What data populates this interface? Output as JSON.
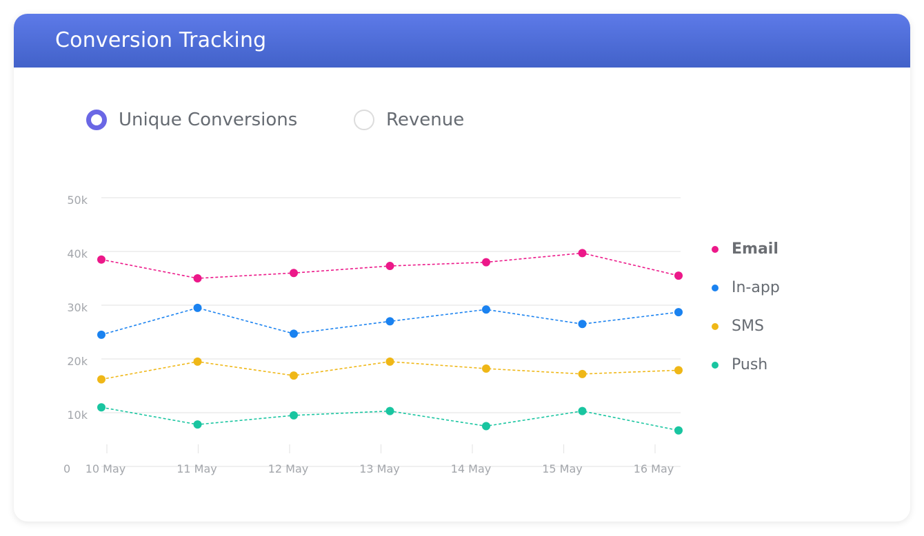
{
  "header": {
    "title": "Conversion Tracking"
  },
  "controls": {
    "options": [
      {
        "label": "Unique Conversions",
        "selected": true
      },
      {
        "label": "Revenue",
        "selected": false
      }
    ]
  },
  "colors": {
    "header_gradient": [
      "#5d7ae8",
      "#4262c9"
    ],
    "radio_selected": "#6a67e5",
    "grid": "#e6e6e6"
  },
  "chart_data": {
    "type": "line",
    "line_style": "dashed",
    "categories": [
      "10 May",
      "11 May",
      "12 May",
      "13 May",
      "14 May",
      "15 May",
      "16 May"
    ],
    "yticks": [
      "0",
      "10k",
      "20k",
      "30k",
      "40k",
      "50k"
    ],
    "ylim": [
      0,
      50000
    ],
    "grid": true,
    "legend_position": "right",
    "series": [
      {
        "name": "Email",
        "color": "#ec1889",
        "bold": true,
        "values": [
          38500,
          35000,
          36000,
          37300,
          38000,
          39700,
          35500
        ]
      },
      {
        "name": "In-app",
        "color": "#1a82f0",
        "bold": false,
        "values": [
          24500,
          29500,
          24700,
          27000,
          29200,
          26500,
          28700
        ]
      },
      {
        "name": "SMS",
        "color": "#efb717",
        "bold": false,
        "values": [
          16200,
          19500,
          16900,
          19500,
          18200,
          17200,
          17900
        ]
      },
      {
        "name": "Push",
        "color": "#19c5a0",
        "bold": false,
        "values": [
          11000,
          7800,
          9500,
          10300,
          7500,
          10300,
          6700
        ]
      }
    ]
  }
}
